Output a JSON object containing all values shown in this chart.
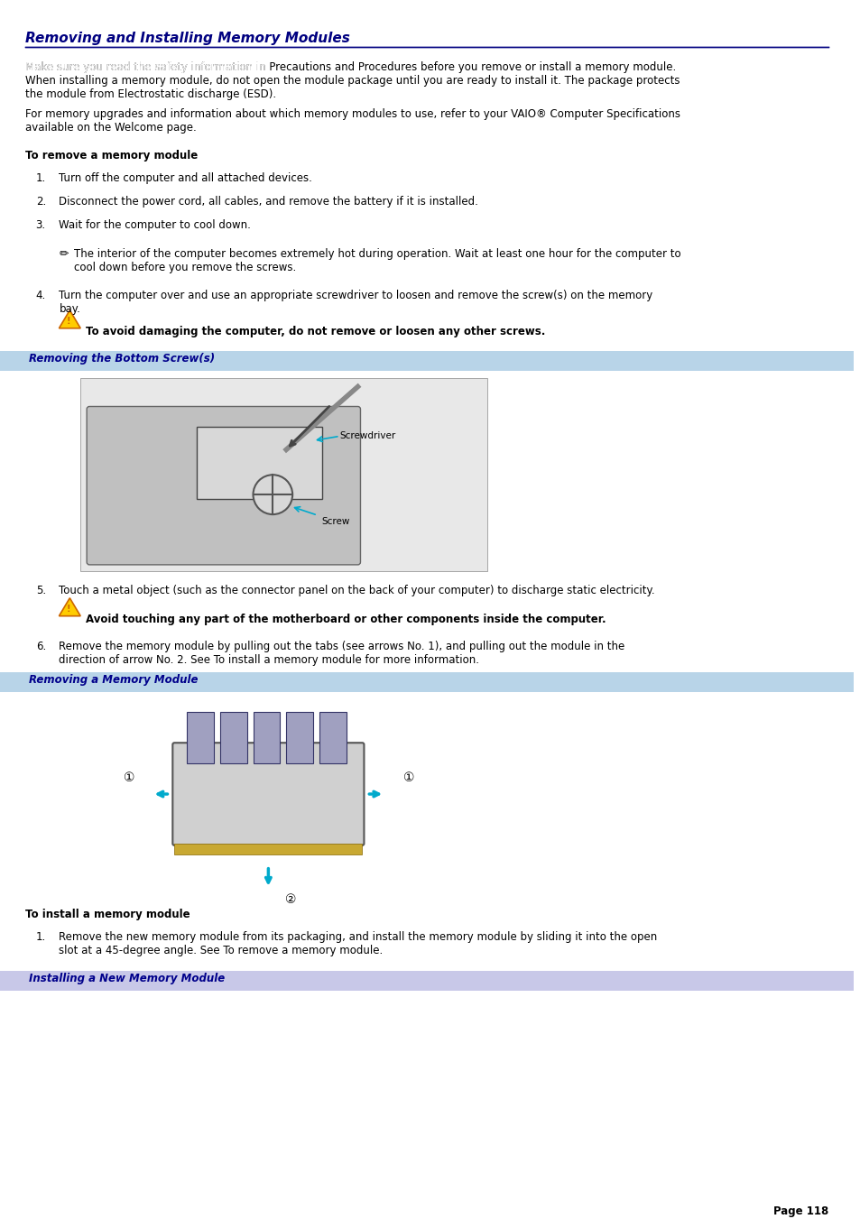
{
  "title": "Removing and Installing Memory Modules",
  "title_color": "#000080",
  "bg_color": "#ffffff",
  "page_number": "Page 118",
  "para1": "Make sure you read the safety information in Precautions and Procedures before you remove or install a memory module.\nWhen installing a memory module, do not open the module package until you are ready to install it. The package protects\nthe module from Electrostatic discharge (ESD).",
  "para1_link": "Precautions and Procedures",
  "para2": "For memory upgrades and information about which memory modules to use, refer to your VAIO® Computer Specifications\navailable on the Welcome page.",
  "para2_link": "Welcome",
  "section1_title": "To remove a memory module",
  "step1": "Turn off the computer and all attached devices.",
  "step2": "Disconnect the power cord, all cables, and remove the battery if it is installed.",
  "step3": "Wait for the computer to cool down.",
  "note1": "The interior of the computer becomes extremely hot during operation. Wait at least one hour for the computer to\ncool down before you remove the screws.",
  "step4": "Turn the computer over and use an appropriate screwdriver to loosen and remove the screw(s) on the memory\nbay.",
  "warning1": "To avoid damaging the computer, do not remove or loosen any other screws.",
  "section_bar1": "Removing the Bottom Screw(s)",
  "section_bar1_bg": "#b8d0e8",
  "section_bar1_text_color": "#000080",
  "step5": "Touch a metal object (such as the connector panel on the back of your computer) to discharge static electricity.",
  "warning2": "Avoid touching any part of the motherboard or other components inside the computer.",
  "step6": "Remove the memory module by pulling out the tabs (see arrows No. 1), and pulling out the module in the\ndirection of arrow No. 2. See To install a memory module for more information.",
  "section_bar2": "Removing a Memory Module",
  "section_bar2_bg": "#b8d0e8",
  "section_bar2_text_color": "#000080",
  "section2_title": "To install a memory module",
  "install_step1": "Remove the new memory module from its packaging, and install the memory module by sliding it into the open\nslot at a 45-degree angle. See To remove a memory module.",
  "section_bar3": "Installing a New Memory Module",
  "section_bar3_bg": "#c8c8e8",
  "section_bar3_text_color": "#000080",
  "text_color": "#000000",
  "link_color": "#0000cc",
  "body_font_size": 9,
  "title_font_size": 11,
  "section_font_size": 9,
  "bold_section_font_size": 9
}
